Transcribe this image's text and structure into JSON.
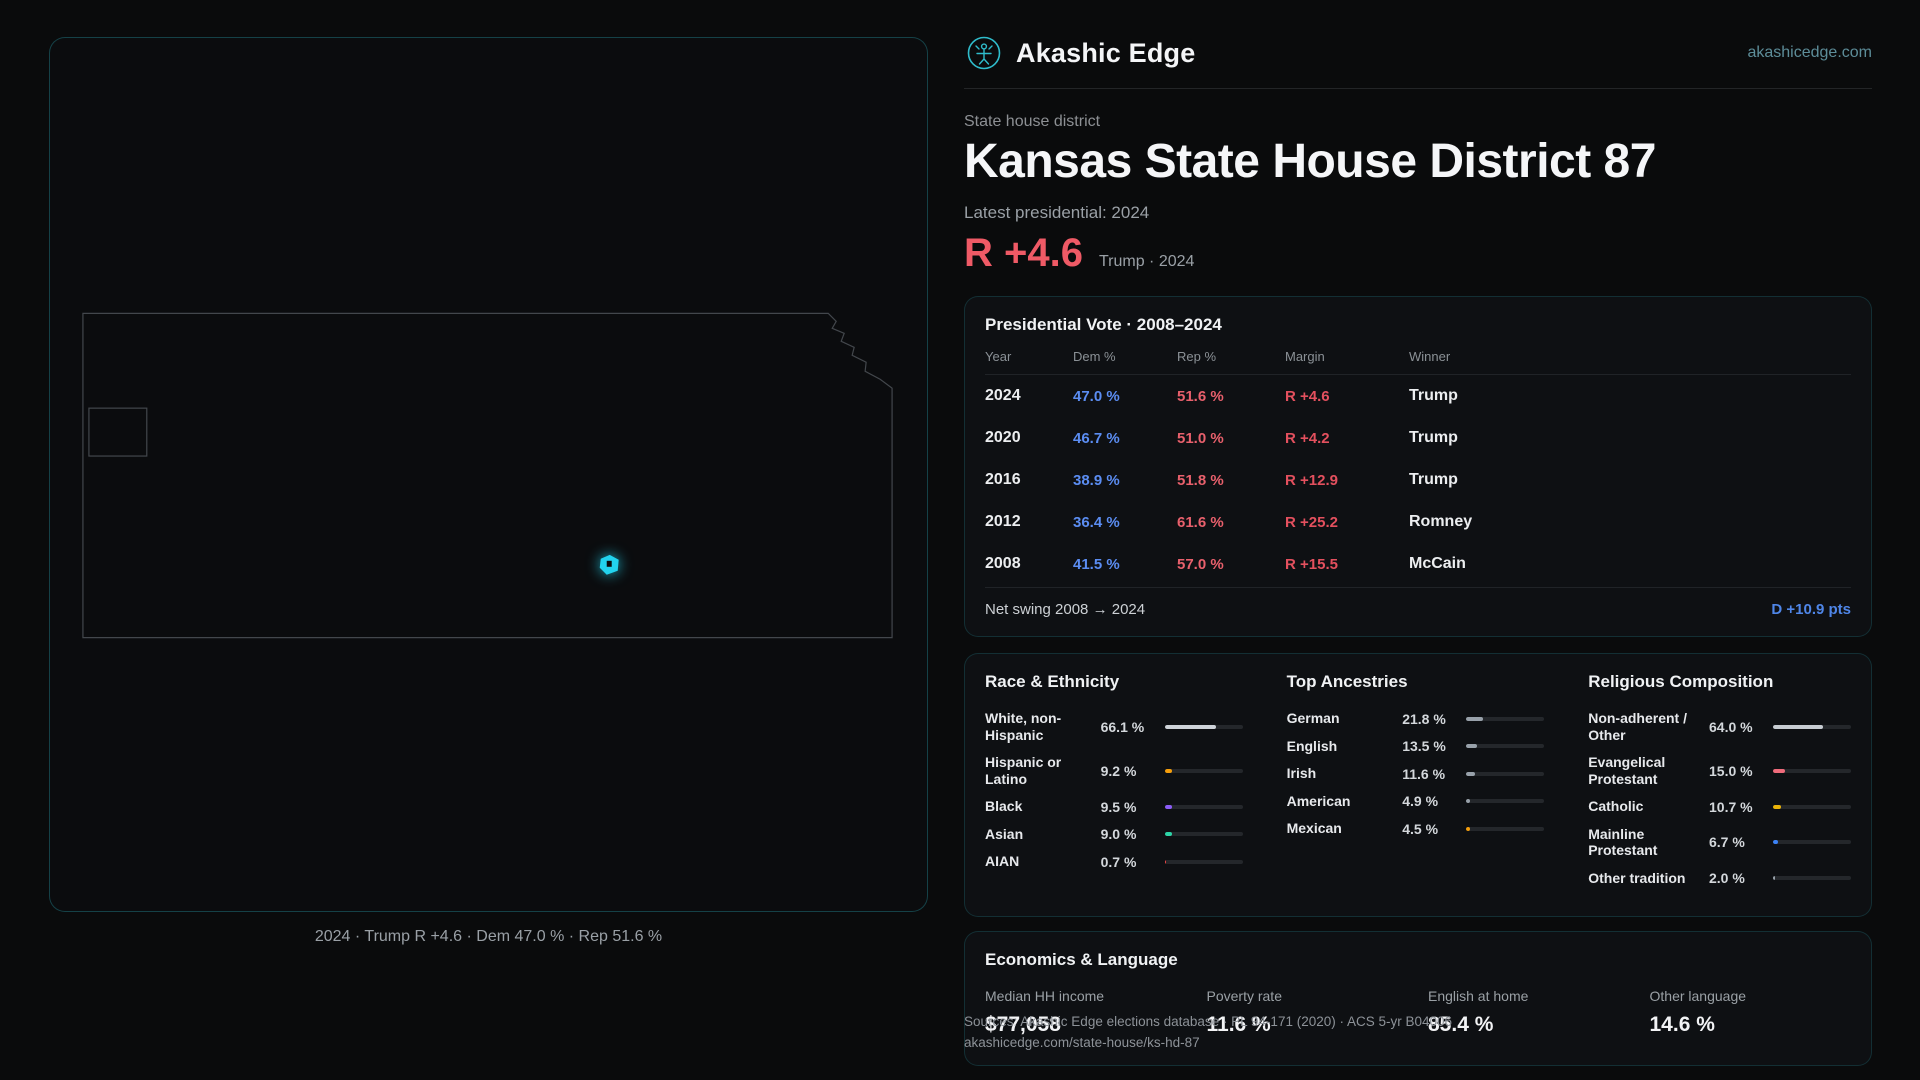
{
  "colors": {
    "accent_teal": "#2fbccb",
    "dem_blue": "#5b8df2",
    "rep_red": "#e8606c",
    "lean_red": "#ef5a66",
    "swing_blue": "#4f86e8",
    "marker_cyan": "#22d3ee"
  },
  "brand": {
    "name": "Akashic Edge",
    "site": "akashicedge.com"
  },
  "hero": {
    "eyebrow": "State house district",
    "title": "Kansas State House District 87",
    "latest": "Latest presidential: 2024",
    "lean": "R +4.6",
    "lean_context": "Trump · 2024"
  },
  "map": {
    "caption": "2024 · Trump R +4.6 · Dem 47.0 % · Rep 51.6 %"
  },
  "pres": {
    "title": "Presidential Vote · 2008–2024",
    "columns": {
      "year": "Year",
      "dem": "Dem %",
      "rep": "Rep %",
      "margin": "Margin",
      "winner": "Winner"
    },
    "rows": [
      {
        "year": "2024",
        "dem": "47.0 %",
        "rep": "51.6 %",
        "margin": "R +4.6",
        "winner": "Trump"
      },
      {
        "year": "2020",
        "dem": "46.7 %",
        "rep": "51.0 %",
        "margin": "R +4.2",
        "winner": "Trump"
      },
      {
        "year": "2016",
        "dem": "38.9 %",
        "rep": "51.8 %",
        "margin": "R +12.9",
        "winner": "Trump"
      },
      {
        "year": "2012",
        "dem": "36.4 %",
        "rep": "61.6 %",
        "margin": "R +25.2",
        "winner": "Romney"
      },
      {
        "year": "2008",
        "dem": "41.5 %",
        "rep": "57.0 %",
        "margin": "R +15.5",
        "winner": "McCain"
      }
    ],
    "net_swing_label": "Net swing 2008 → 2024",
    "net_swing_value": "D +10.9 pts"
  },
  "race": {
    "title": "Race & Ethnicity",
    "rows": [
      {
        "label": "White, non-Hispanic",
        "value": "66.1 %",
        "pct": 66.1,
        "color": "#ced3d9"
      },
      {
        "label": "Hispanic or Latino",
        "value": "9.2 %",
        "pct": 9.2,
        "color": "#f59e0b"
      },
      {
        "label": "Black",
        "value": "9.5 %",
        "pct": 9.5,
        "color": "#8b5cf6"
      },
      {
        "label": "Asian",
        "value": "9.0 %",
        "pct": 9.0,
        "color": "#2dd4a7"
      },
      {
        "label": "AIAN",
        "value": "0.7 %",
        "pct": 0.7,
        "color": "#ef4444"
      }
    ]
  },
  "ancestry": {
    "title": "Top Ancestries",
    "rows": [
      {
        "label": "German",
        "value": "21.8 %",
        "pct": 21.8,
        "color": "#98a1aa"
      },
      {
        "label": "English",
        "value": "13.5 %",
        "pct": 13.5,
        "color": "#98a1aa"
      },
      {
        "label": "Irish",
        "value": "11.6 %",
        "pct": 11.6,
        "color": "#98a1aa"
      },
      {
        "label": "American",
        "value": "4.9 %",
        "pct": 4.9,
        "color": "#98a1aa"
      },
      {
        "label": "Mexican",
        "value": "4.5 %",
        "pct": 4.5,
        "color": "#f59e0b"
      }
    ]
  },
  "religion": {
    "title": "Religious Composition",
    "rows": [
      {
        "label": "Non-adherent / Other",
        "value": "64.0 %",
        "pct": 64.0,
        "color": "#c7ccd2"
      },
      {
        "label": "Evangelical Protestant",
        "value": "15.0 %",
        "pct": 15.0,
        "color": "#ef6b7b"
      },
      {
        "label": "Catholic",
        "value": "10.7 %",
        "pct": 10.7,
        "color": "#eab308"
      },
      {
        "label": "Mainline Protestant",
        "value": "6.7 %",
        "pct": 6.7,
        "color": "#3b82f6"
      },
      {
        "label": "Other tradition",
        "value": "2.0 %",
        "pct": 2.0,
        "color": "#98a1aa"
      }
    ]
  },
  "econ": {
    "title": "Economics & Language",
    "stats": [
      {
        "label": "Median HH income",
        "value": "$77,058"
      },
      {
        "label": "Poverty rate",
        "value": "11.6 %"
      },
      {
        "label": "English at home",
        "value": "85.4 %"
      },
      {
        "label": "Other language",
        "value": "14.6 %"
      }
    ]
  },
  "footer": {
    "line1": "Sources: Akashic Edge elections database · PL 94-171 (2020) · ACS 5-yr B04006",
    "line2": "akashicedge.com/state-house/ks-hd-87"
  }
}
